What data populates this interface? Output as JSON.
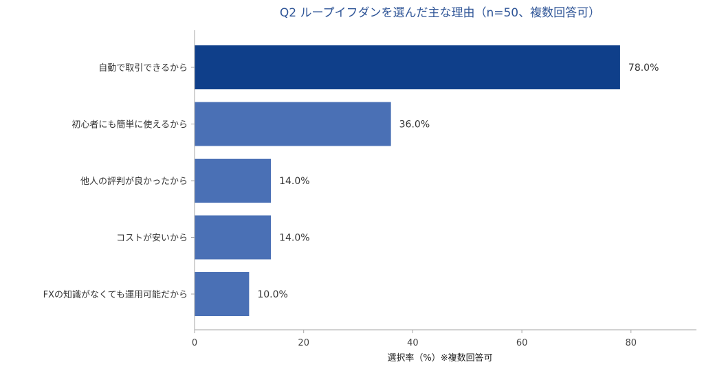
{
  "chart_data": {
    "type": "bar",
    "orientation": "horizontal",
    "title": "Q2 ループイフダンを選んだ主な理由（n=50、複数回答可）",
    "xlabel": "選択率（%）※複数回答可",
    "ylabel": "",
    "categories": [
      "自動で取引できるから",
      "初心者にも簡単に使えるから",
      "他人の評判が良かったから",
      "コストが安いから",
      "FXの知識がなくても運用可能だから"
    ],
    "values": [
      78.0,
      36.0,
      14.0,
      14.0,
      10.0
    ],
    "value_labels": [
      "78.0%",
      "36.0%",
      "14.0%",
      "14.0%",
      "10.0%"
    ],
    "xlim": [
      0,
      92
    ],
    "xticks": [
      0,
      20,
      40,
      60,
      80
    ],
    "grid": false,
    "legend": "none",
    "colors": {
      "highlight": "#0f3f8a",
      "bar": "#4a70b5",
      "title": "#2f5597",
      "axis": "#a6a6a6"
    }
  }
}
